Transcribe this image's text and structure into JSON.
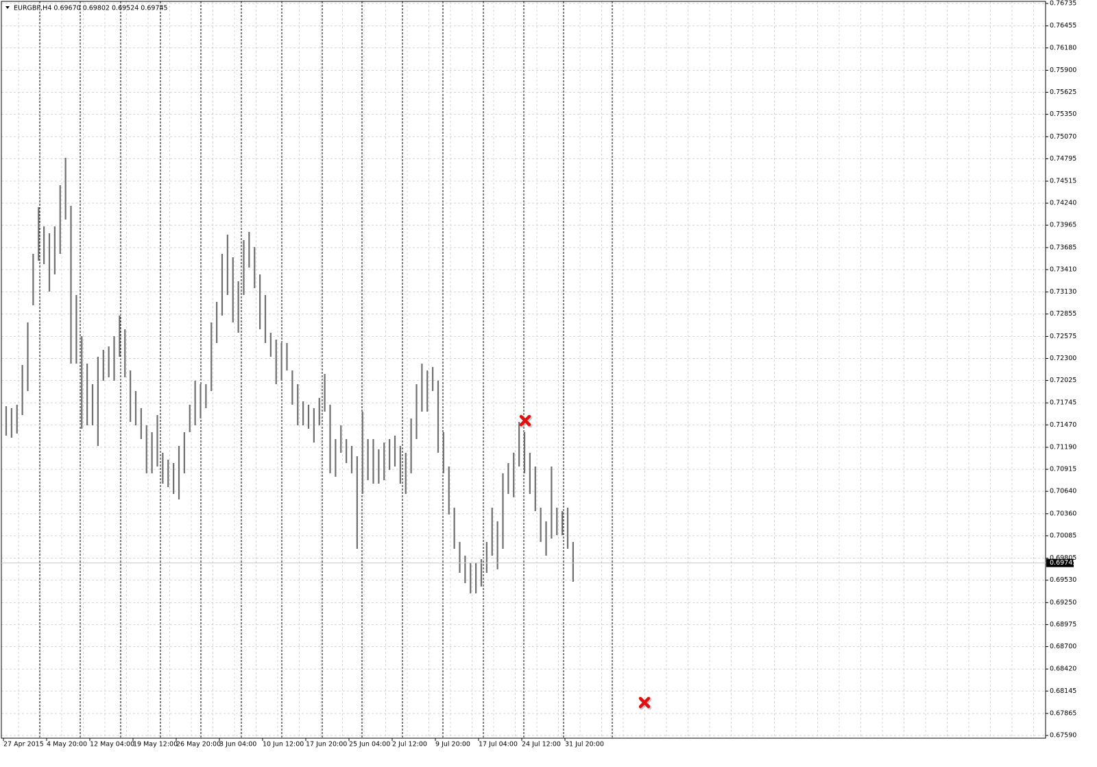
{
  "chart_data": {
    "type": "ohlc-range",
    "title": "EURGBP,H4  0.69670 0.69802 0.69524 0.69745",
    "color": "#6e6e6e",
    "grid": true,
    "last_price": 0.69745,
    "ylim": [
      0.67556,
      0.76761
    ],
    "yticks": [
      0.76735,
      0.76455,
      {
        "value": 0.7618,
        "label": "0.76180"
      },
      {
        "value": 0.759,
        "label": "0.75900"
      },
      0.75625,
      {
        "value": 0.7535,
        "label": "0.75350"
      },
      {
        "value": 0.7507,
        "label": "0.75070"
      },
      0.74795,
      0.74515,
      {
        "value": 0.7424,
        "label": "0.74240"
      },
      0.73965,
      0.73685,
      {
        "value": 0.7341,
        "label": "0.73410"
      },
      {
        "value": 0.7313,
        "label": "0.73130"
      },
      0.72855,
      0.72575,
      {
        "value": 0.723,
        "label": "0.72300"
      },
      0.72025,
      0.71745,
      {
        "value": 0.7147,
        "label": "0.71470"
      },
      {
        "value": 0.7119,
        "label": "0.71190"
      },
      0.70915,
      {
        "value": 0.7064,
        "label": "0.70640"
      },
      {
        "value": 0.7036,
        "label": "0.70360"
      },
      0.70085,
      0.69805,
      {
        "value": 0.6953,
        "label": "0.69530"
      },
      {
        "value": 0.6925,
        "label": "0.69250"
      },
      0.68975,
      {
        "value": 0.687,
        "label": "0.68700"
      },
      {
        "value": 0.6842,
        "label": "0.68420"
      },
      0.68145,
      0.67865,
      {
        "value": 0.6759,
        "label": "0.67590"
      }
    ],
    "categories": [
      "27 Apr 2015",
      null,
      null,
      null,
      null,
      null,
      null,
      null,
      "4 May 20:00",
      null,
      null,
      null,
      null,
      null,
      null,
      null,
      "12 May 04:00",
      null,
      null,
      null,
      null,
      null,
      null,
      null,
      "19 May 12:00",
      null,
      null,
      null,
      null,
      null,
      null,
      null,
      "26 May 20:00",
      null,
      null,
      null,
      null,
      null,
      null,
      null,
      "3 Jun 04:00",
      null,
      null,
      null,
      null,
      null,
      null,
      null,
      "10 Jun 12:00",
      null,
      null,
      null,
      null,
      null,
      null,
      null,
      "17 Jun 20:00",
      null,
      null,
      null,
      null,
      null,
      null,
      null,
      "25 Jun 04:00",
      null,
      null,
      null,
      null,
      null,
      null,
      null,
      "2 Jul 12:00",
      null,
      null,
      null,
      null,
      null,
      null,
      null,
      "9 Jul 20:00",
      null,
      null,
      null,
      null,
      null,
      null,
      null,
      "17 Jul 04:00",
      null,
      null,
      null,
      null,
      null,
      null,
      null,
      "24 Jul 12:00",
      null,
      null,
      null,
      null,
      null,
      null,
      null,
      "31 Jul 20:00",
      null
    ],
    "high": [
      0.71704,
      0.71679,
      0.71722,
      0.72219,
      0.7275,
      0.73607,
      0.7419,
      0.7395,
      0.73864,
      0.7395,
      0.74464,
      0.74807,
      0.74207,
      0.73093,
      0.72579,
      0.72236,
      0.71979,
      0.72321,
      0.72407,
      0.7245,
      0.72579,
      0.72836,
      0.72664,
      0.7215,
      0.71893,
      0.71679,
      0.71464,
      0.71379,
      0.71593,
      0.71122,
      0.71036,
      0.70993,
      0.71207,
      0.71379,
      0.71722,
      0.72022,
      0.71979,
      0.71979,
      0.7275,
      0.73007,
      0.73607,
      0.73847,
      0.73564,
      0.73264,
      0.73778,
      0.73881,
      0.73693,
      0.7335,
      0.73093,
      0.72621,
      0.72536,
      0.72493,
      0.72493,
      0.7215,
      0.71979,
      0.71764,
      0.71722,
      0.71679,
      0.71807,
      0.72107,
      0.71722,
      0.71293,
      0.71464,
      0.71293,
      0.71207,
      0.71079,
      0.71636,
      0.71293,
      0.71293,
      0.71165,
      0.7125,
      0.71293,
      0.71336,
      0.71207,
      0.71122,
      0.7155,
      0.71979,
      0.72236,
      0.7215,
      0.72193,
      0.72022,
      0.71379,
      0.7095,
      0.70436,
      0.70008,
      0.69836,
      0.6975,
      0.6975,
      0.69793,
      0.70008,
      0.70436,
      0.70265,
      0.70865,
      0.70993,
      0.71122,
      0.71507,
      0.71379,
      0.71122,
      0.7095,
      0.70436,
      0.70265,
      0.7095,
      0.70436,
      0.70393,
      0.70436,
      0.70008
    ],
    "low": [
      0.71336,
      0.7131,
      0.71362,
      0.71593,
      0.71893,
      0.72964,
      0.73521,
      0.73478,
      0.73136,
      0.7335,
      0.73607,
      0.74035,
      0.72236,
      0.72236,
      0.71422,
      0.71464,
      0.71464,
      0.71207,
      0.72022,
      0.72064,
      0.72022,
      0.72321,
      0.72064,
      0.71507,
      0.71464,
      0.71293,
      0.70865,
      0.70865,
      0.7095,
      0.70736,
      0.70693,
      0.70607,
      0.70539,
      0.70865,
      0.71379,
      0.71464,
      0.7155,
      0.71679,
      0.71893,
      0.72493,
      0.72836,
      0.73093,
      0.7275,
      0.72621,
      0.73093,
      0.73436,
      0.73178,
      0.72664,
      0.72493,
      0.72321,
      0.71979,
      0.72022,
      0.7215,
      0.71722,
      0.71464,
      0.71464,
      0.71422,
      0.7125,
      0.71464,
      0.71636,
      0.70865,
      0.70822,
      0.71122,
      0.70993,
      0.70865,
      0.69922,
      0.70607,
      0.70779,
      0.70736,
      0.70736,
      0.70779,
      0.70907,
      0.7095,
      0.70736,
      0.70607,
      0.70865,
      0.71293,
      0.71636,
      0.71636,
      0.71893,
      0.71122,
      0.70865,
      0.7035,
      0.69922,
      0.69622,
      0.69493,
      0.69365,
      0.69365,
      0.69451,
      0.69622,
      0.69836,
      0.69665,
      0.69922,
      0.70607,
      0.70565,
      0.7095,
      0.70865,
      0.70607,
      0.70393,
      0.70008,
      0.69836,
      0.7005,
      0.70093,
      0.70093,
      0.69922,
      0.6951
    ]
  }
}
